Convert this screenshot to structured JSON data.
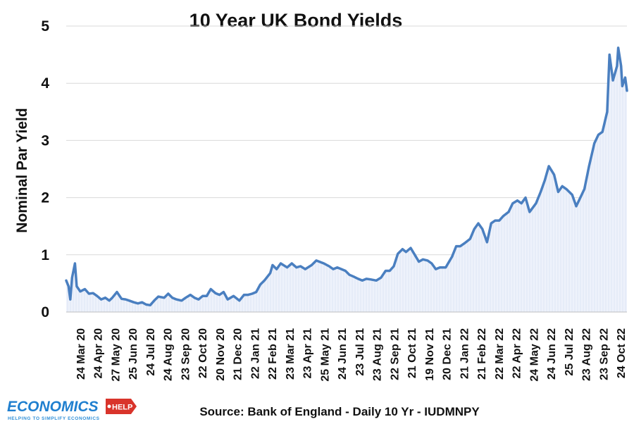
{
  "chart_data": {
    "type": "line",
    "title": "10 Year UK Bond Yields",
    "ylabel": "Nominal Par Yield",
    "xlabel": "",
    "ylim": [
      0,
      5
    ],
    "yticks": [
      0,
      1,
      2,
      3,
      4,
      5
    ],
    "grid": "horizontal",
    "fill_under_line": true,
    "line_color": "#4a7fc0",
    "fill_color": "#eef2fb",
    "xtick_labels": [
      "24 Mar 20",
      "24 Apr 20",
      "27 May 20",
      "25 Jun 20",
      "24 Jul 20",
      "24 Aug 20",
      "23 Sep 20",
      "22 Oct 20",
      "20 Nov 20",
      "21 Dec 20",
      "22 Jan 21",
      "22 Feb 21",
      "23 Mar 21",
      "23 Apr 21",
      "25 May 21",
      "24 Jun 21",
      "23 Jul 21",
      "23 Aug 21",
      "22 Sep 21",
      "21 Oct 21",
      "19 Nov 21",
      "20 Dec 21",
      "21 Jan 22",
      "21 Feb 22",
      "22 Mar 22",
      "22 Apr 22",
      "24 May 22",
      "24 Jun 22",
      "25 Jul 22",
      "23 Aug 22",
      "23 Sep 22",
      "24 Oct 22"
    ],
    "series": [
      {
        "name": "",
        "points": [
          [
            "2020-03-09",
            0.55
          ],
          [
            "2020-03-13",
            0.45
          ],
          [
            "2020-03-16",
            0.22
          ],
          [
            "2020-03-19",
            0.6
          ],
          [
            "2020-03-24",
            0.85
          ],
          [
            "2020-03-27",
            0.45
          ],
          [
            "2020-04-02",
            0.36
          ],
          [
            "2020-04-10",
            0.4
          ],
          [
            "2020-04-17",
            0.32
          ],
          [
            "2020-04-24",
            0.33
          ],
          [
            "2020-05-01",
            0.28
          ],
          [
            "2020-05-08",
            0.22
          ],
          [
            "2020-05-15",
            0.25
          ],
          [
            "2020-05-22",
            0.2
          ],
          [
            "2020-05-27",
            0.25
          ],
          [
            "2020-06-04",
            0.35
          ],
          [
            "2020-06-12",
            0.23
          ],
          [
            "2020-06-19",
            0.22
          ],
          [
            "2020-06-25",
            0.2
          ],
          [
            "2020-07-03",
            0.17
          ],
          [
            "2020-07-10",
            0.15
          ],
          [
            "2020-07-17",
            0.17
          ],
          [
            "2020-07-24",
            0.13
          ],
          [
            "2020-07-31",
            0.12
          ],
          [
            "2020-08-07",
            0.2
          ],
          [
            "2020-08-14",
            0.27
          ],
          [
            "2020-08-24",
            0.25
          ],
          [
            "2020-08-31",
            0.32
          ],
          [
            "2020-09-07",
            0.25
          ],
          [
            "2020-09-14",
            0.22
          ],
          [
            "2020-09-23",
            0.2
          ],
          [
            "2020-09-30",
            0.25
          ],
          [
            "2020-10-08",
            0.3
          ],
          [
            "2020-10-15",
            0.25
          ],
          [
            "2020-10-22",
            0.22
          ],
          [
            "2020-10-29",
            0.28
          ],
          [
            "2020-11-05",
            0.28
          ],
          [
            "2020-11-12",
            0.4
          ],
          [
            "2020-11-20",
            0.33
          ],
          [
            "2020-11-27",
            0.3
          ],
          [
            "2020-12-04",
            0.35
          ],
          [
            "2020-12-11",
            0.22
          ],
          [
            "2020-12-21",
            0.28
          ],
          [
            "2020-12-31",
            0.2
          ],
          [
            "2021-01-08",
            0.3
          ],
          [
            "2021-01-15",
            0.3
          ],
          [
            "2021-01-22",
            0.32
          ],
          [
            "2021-01-29",
            0.35
          ],
          [
            "2021-02-05",
            0.48
          ],
          [
            "2021-02-12",
            0.55
          ],
          [
            "2021-02-22",
            0.68
          ],
          [
            "2021-02-26",
            0.82
          ],
          [
            "2021-03-05",
            0.75
          ],
          [
            "2021-03-12",
            0.85
          ],
          [
            "2021-03-23",
            0.78
          ],
          [
            "2021-03-31",
            0.85
          ],
          [
            "2021-04-08",
            0.78
          ],
          [
            "2021-04-15",
            0.8
          ],
          [
            "2021-04-23",
            0.75
          ],
          [
            "2021-05-04",
            0.82
          ],
          [
            "2021-05-12",
            0.9
          ],
          [
            "2021-05-25",
            0.85
          ],
          [
            "2021-06-03",
            0.8
          ],
          [
            "2021-06-10",
            0.75
          ],
          [
            "2021-06-17",
            0.78
          ],
          [
            "2021-06-24",
            0.75
          ],
          [
            "2021-07-01",
            0.72
          ],
          [
            "2021-07-08",
            0.65
          ],
          [
            "2021-07-15",
            0.62
          ],
          [
            "2021-07-23",
            0.58
          ],
          [
            "2021-07-30",
            0.55
          ],
          [
            "2021-08-06",
            0.58
          ],
          [
            "2021-08-13",
            0.57
          ],
          [
            "2021-08-23",
            0.55
          ],
          [
            "2021-08-31",
            0.6
          ],
          [
            "2021-09-08",
            0.72
          ],
          [
            "2021-09-15",
            0.72
          ],
          [
            "2021-09-22",
            0.8
          ],
          [
            "2021-09-29",
            1.02
          ],
          [
            "2021-10-07",
            1.1
          ],
          [
            "2021-10-13",
            1.05
          ],
          [
            "2021-10-21",
            1.12
          ],
          [
            "2021-10-28",
            1.0
          ],
          [
            "2021-11-04",
            0.88
          ],
          [
            "2021-11-11",
            0.92
          ],
          [
            "2021-11-19",
            0.9
          ],
          [
            "2021-11-26",
            0.85
          ],
          [
            "2021-12-03",
            0.75
          ],
          [
            "2021-12-10",
            0.78
          ],
          [
            "2021-12-20",
            0.78
          ],
          [
            "2021-12-31",
            0.97
          ],
          [
            "2022-01-07",
            1.15
          ],
          [
            "2022-01-14",
            1.15
          ],
          [
            "2022-01-21",
            1.2
          ],
          [
            "2022-01-31",
            1.28
          ],
          [
            "2022-02-07",
            1.45
          ],
          [
            "2022-02-14",
            1.55
          ],
          [
            "2022-02-21",
            1.45
          ],
          [
            "2022-03-01",
            1.22
          ],
          [
            "2022-03-08",
            1.55
          ],
          [
            "2022-03-15",
            1.6
          ],
          [
            "2022-03-22",
            1.6
          ],
          [
            "2022-03-29",
            1.68
          ],
          [
            "2022-04-07",
            1.75
          ],
          [
            "2022-04-14",
            1.9
          ],
          [
            "2022-04-22",
            1.95
          ],
          [
            "2022-04-29",
            1.9
          ],
          [
            "2022-05-06",
            2.0
          ],
          [
            "2022-05-13",
            1.75
          ],
          [
            "2022-05-24",
            1.9
          ],
          [
            "2022-06-01",
            2.1
          ],
          [
            "2022-06-08",
            2.3
          ],
          [
            "2022-06-15",
            2.55
          ],
          [
            "2022-06-24",
            2.4
          ],
          [
            "2022-07-01",
            2.1
          ],
          [
            "2022-07-08",
            2.2
          ],
          [
            "2022-07-15",
            2.15
          ],
          [
            "2022-07-25",
            2.05
          ],
          [
            "2022-08-01",
            1.85
          ],
          [
            "2022-08-08",
            2.0
          ],
          [
            "2022-08-15",
            2.15
          ],
          [
            "2022-08-23",
            2.55
          ],
          [
            "2022-09-01",
            2.95
          ],
          [
            "2022-09-08",
            3.1
          ],
          [
            "2022-09-15",
            3.15
          ],
          [
            "2022-09-23",
            3.5
          ],
          [
            "2022-09-27",
            4.5
          ],
          [
            "2022-10-03",
            4.05
          ],
          [
            "2022-10-10",
            4.3
          ],
          [
            "2022-10-12",
            4.62
          ],
          [
            "2022-10-17",
            4.3
          ],
          [
            "2022-10-19",
            3.95
          ],
          [
            "2022-10-24",
            4.1
          ],
          [
            "2022-10-27",
            3.87
          ]
        ]
      }
    ]
  },
  "source_note": "Source: Bank of England - Daily 10 Yr - IUDMNPY",
  "logo": {
    "name": "ECONOMICS",
    "tag": "HELP",
    "tagline": "HELPING TO SIMPLIFY ECONOMICS"
  },
  "colors": {
    "line": "#4a7fc0",
    "fill": "#eef2fb",
    "logo_blue": "#1f7fcf",
    "logo_red": "#d9342b"
  }
}
